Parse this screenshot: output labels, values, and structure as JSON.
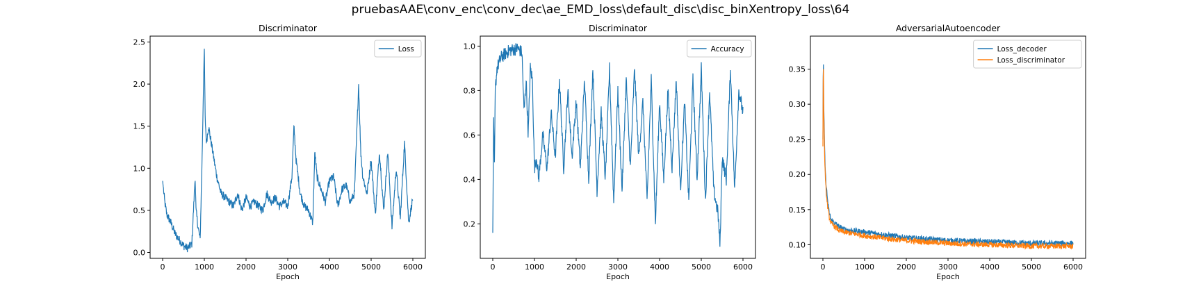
{
  "figure": {
    "suptitle": "pruebasAAE\\conv_enc\\conv_dec\\ae_EMD_loss\\default_disc\\disc_binXentropy_loss\\64"
  },
  "colors": {
    "blue": "#1f77b4",
    "orange": "#ff7f0e"
  },
  "chart_data": [
    {
      "type": "line",
      "title": "Discriminator",
      "xlabel": "Epoch",
      "ylabel": "",
      "xlim": [
        -300,
        6300
      ],
      "ylim": [
        -0.07,
        2.57
      ],
      "xticks": [
        0,
        1000,
        2000,
        3000,
        4000,
        5000,
        6000
      ],
      "xtick_labels": [
        "0",
        "1000",
        "2000",
        "3000",
        "4000",
        "5000",
        "6000"
      ],
      "yticks": [
        0.0,
        0.5,
        1.0,
        1.5,
        2.0,
        2.5
      ],
      "ytick_labels": [
        "0.0",
        "0.5",
        "1.0",
        "1.5",
        "2.0",
        "2.5"
      ],
      "grid": false,
      "legend_position": "upper-right",
      "noise_amplitude": 0.05,
      "series": [
        {
          "name": "Loss",
          "color": "#1f77b4",
          "x": [
            0,
            50,
            100,
            200,
            300,
            400,
            500,
            600,
            700,
            750,
            780,
            800,
            850,
            900,
            950,
            980,
            1000,
            1020,
            1050,
            1100,
            1200,
            1300,
            1400,
            1500,
            1600,
            1700,
            1800,
            1900,
            2000,
            2100,
            2200,
            2300,
            2400,
            2500,
            2600,
            2700,
            2800,
            2900,
            3000,
            3100,
            3150,
            3200,
            3300,
            3400,
            3500,
            3600,
            3650,
            3700,
            3800,
            3900,
            4000,
            4100,
            4200,
            4300,
            4400,
            4500,
            4600,
            4700,
            4750,
            4800,
            4900,
            5000,
            5100,
            5200,
            5300,
            5400,
            5500,
            5600,
            5700,
            5800,
            5900,
            6000
          ],
          "y": [
            0.85,
            0.6,
            0.45,
            0.35,
            0.22,
            0.15,
            0.08,
            0.05,
            0.1,
            0.6,
            0.9,
            0.5,
            0.3,
            0.15,
            1.2,
            2.0,
            2.4,
            1.6,
            1.3,
            1.5,
            1.2,
            0.9,
            0.7,
            0.65,
            0.6,
            0.55,
            0.7,
            0.5,
            0.65,
            0.55,
            0.6,
            0.55,
            0.5,
            0.7,
            0.6,
            0.65,
            0.55,
            0.6,
            0.55,
            0.9,
            1.5,
            1.1,
            0.7,
            0.55,
            0.5,
            0.35,
            1.2,
            0.9,
            0.75,
            0.6,
            0.85,
            0.9,
            0.55,
            0.75,
            0.8,
            0.6,
            0.7,
            2.0,
            1.2,
            0.9,
            0.7,
            1.1,
            0.45,
            1.2,
            0.5,
            1.2,
            0.3,
            1.0,
            0.4,
            1.3,
            0.35,
            0.65
          ]
        }
      ]
    },
    {
      "type": "line",
      "title": "Discriminator",
      "xlabel": "Epoch",
      "ylabel": "",
      "xlim": [
        -300,
        6300
      ],
      "ylim": [
        0.045,
        1.045
      ],
      "xticks": [
        0,
        1000,
        2000,
        3000,
        4000,
        5000,
        6000
      ],
      "xtick_labels": [
        "0",
        "1000",
        "2000",
        "3000",
        "4000",
        "5000",
        "6000"
      ],
      "yticks": [
        0.2,
        0.4,
        0.6,
        0.8,
        1.0
      ],
      "ytick_labels": [
        "0.2",
        "0.4",
        "0.6",
        "0.8",
        "1.0"
      ],
      "grid": false,
      "legend_position": "upper-right",
      "noise_amplitude": 0.03,
      "series": [
        {
          "name": "Accuracy",
          "color": "#1f77b4",
          "x": [
            0,
            20,
            40,
            60,
            100,
            200,
            400,
            600,
            700,
            750,
            800,
            850,
            900,
            950,
            1000,
            1050,
            1100,
            1200,
            1300,
            1400,
            1500,
            1600,
            1700,
            1800,
            1900,
            2000,
            2100,
            2200,
            2300,
            2400,
            2500,
            2600,
            2700,
            2800,
            2900,
            3000,
            3100,
            3200,
            3300,
            3400,
            3500,
            3600,
            3700,
            3800,
            3900,
            4000,
            4100,
            4200,
            4300,
            4400,
            4500,
            4600,
            4700,
            4800,
            4900,
            5000,
            5100,
            5200,
            5300,
            5400,
            5450,
            5500,
            5600,
            5700,
            5800,
            5900,
            6000
          ],
          "y": [
            0.16,
            0.65,
            0.45,
            0.8,
            0.9,
            0.95,
            0.98,
            0.99,
            0.97,
            0.7,
            0.85,
            0.6,
            0.9,
            0.85,
            0.45,
            0.5,
            0.4,
            0.6,
            0.45,
            0.7,
            0.5,
            0.85,
            0.45,
            0.8,
            0.5,
            0.75,
            0.45,
            0.85,
            0.4,
            0.9,
            0.35,
            0.7,
            0.4,
            0.9,
            0.3,
            0.8,
            0.35,
            0.85,
            0.45,
            0.9,
            0.5,
            0.75,
            0.3,
            0.85,
            0.2,
            0.75,
            0.4,
            0.8,
            0.45,
            0.85,
            0.35,
            0.75,
            0.3,
            0.85,
            0.4,
            0.9,
            0.3,
            0.8,
            0.35,
            0.25,
            0.1,
            0.5,
            0.4,
            0.9,
            0.35,
            0.8,
            0.7
          ]
        }
      ]
    },
    {
      "type": "line",
      "title": "AdversarialAutoencoder",
      "xlabel": "Epoch",
      "ylabel": "",
      "xlim": [
        -300,
        6300
      ],
      "ylim": [
        0.0806,
        0.397
      ],
      "xticks": [
        0,
        1000,
        2000,
        3000,
        4000,
        5000,
        6000
      ],
      "xtick_labels": [
        "0",
        "1000",
        "2000",
        "3000",
        "4000",
        "5000",
        "6000"
      ],
      "yticks": [
        0.1,
        0.15,
        0.2,
        0.25,
        0.3,
        0.35
      ],
      "ytick_labels": [
        "0.10",
        "0.15",
        "0.20",
        "0.25",
        "0.30",
        "0.35"
      ],
      "grid": false,
      "legend_position": "upper-right",
      "noise_amplitude": 0.004,
      "series": [
        {
          "name": "Loss_decoder",
          "color": "#1f77b4",
          "x": [
            0,
            10,
            20,
            40,
            60,
            100,
            150,
            200,
            300,
            400,
            500,
            700,
            1000,
            1500,
            2000,
            2500,
            3000,
            3500,
            4000,
            4500,
            5000,
            5500,
            6000
          ],
          "y": [
            0.25,
            0.385,
            0.3,
            0.24,
            0.2,
            0.17,
            0.145,
            0.135,
            0.13,
            0.125,
            0.122,
            0.12,
            0.118,
            0.114,
            0.11,
            0.108,
            0.106,
            0.105,
            0.104,
            0.103,
            0.102,
            0.102,
            0.102
          ]
        },
        {
          "name": "Loss_discriminator",
          "color": "#ff7f0e",
          "x": [
            0,
            10,
            20,
            40,
            60,
            100,
            150,
            200,
            300,
            400,
            500,
            700,
            1000,
            1500,
            2000,
            2500,
            3000,
            3500,
            4000,
            4500,
            5000,
            5500,
            6000
          ],
          "y": [
            0.24,
            0.38,
            0.29,
            0.23,
            0.19,
            0.16,
            0.14,
            0.13,
            0.125,
            0.12,
            0.118,
            0.116,
            0.113,
            0.109,
            0.106,
            0.104,
            0.102,
            0.101,
            0.1,
            0.099,
            0.098,
            0.098,
            0.098
          ]
        }
      ]
    }
  ]
}
